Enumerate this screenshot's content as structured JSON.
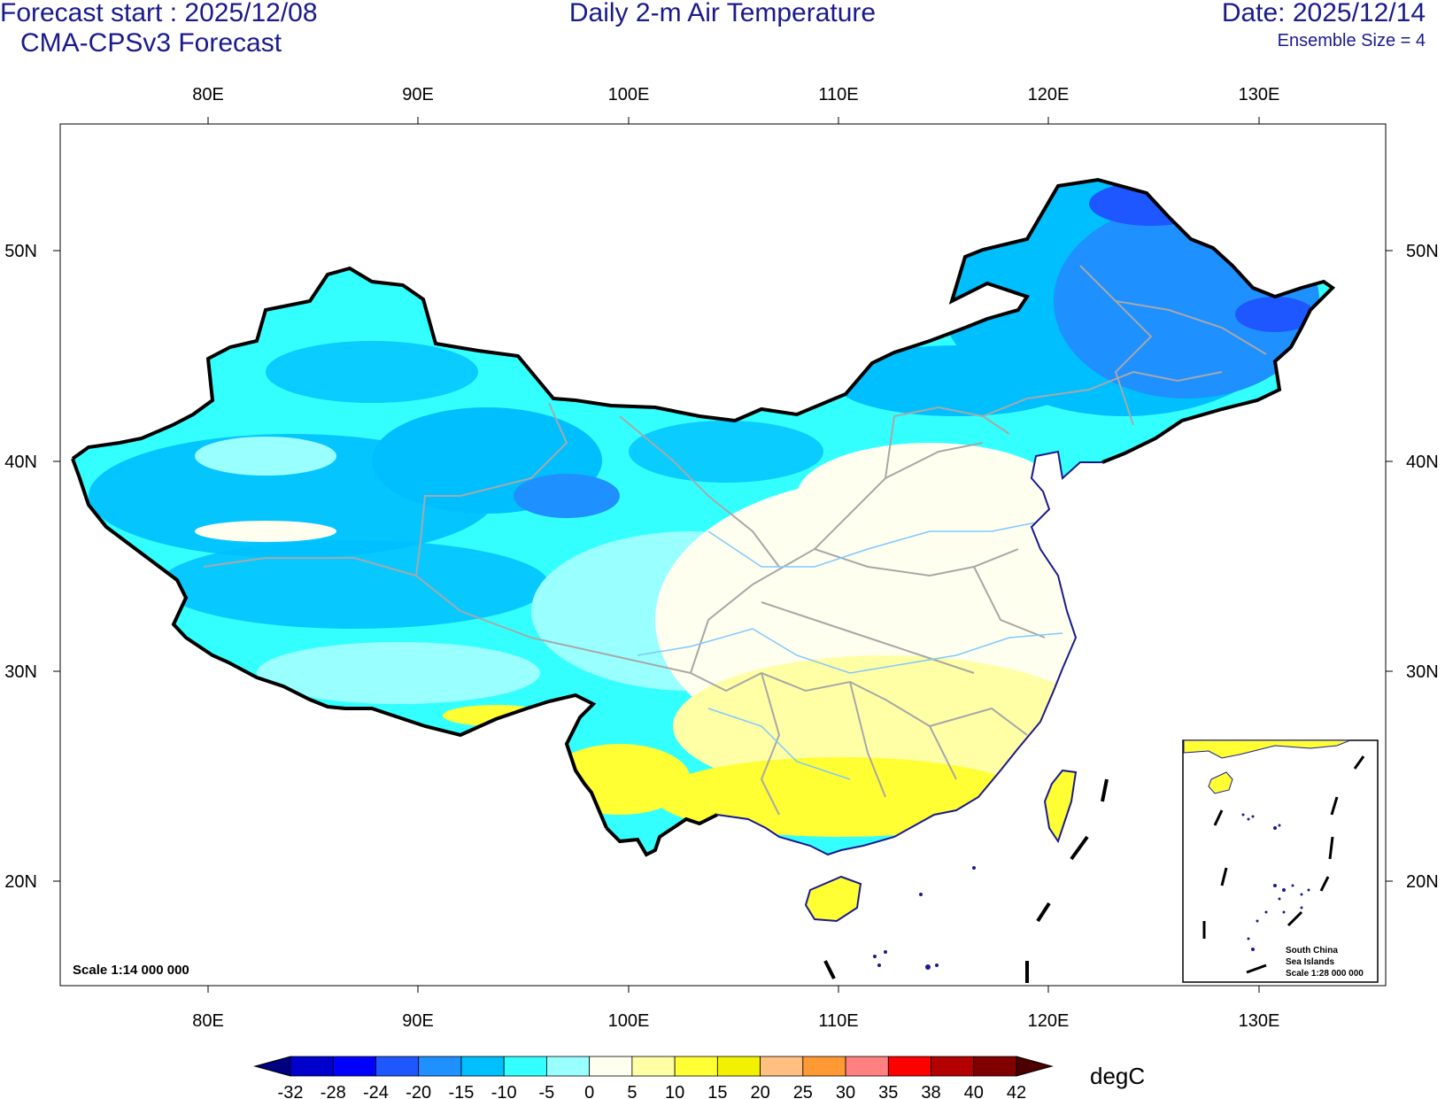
{
  "header": {
    "forecast_start": "Forecast start : 2025/12/08",
    "model": "CMA-CPSv3 Forecast",
    "title": "Daily 2-m Air Temperature",
    "date": "Date: 2025/12/14",
    "ensemble": "Ensemble Size = 4"
  },
  "axes": {
    "lon_labels": [
      "80E",
      "90E",
      "100E",
      "110E",
      "120E",
      "130E"
    ],
    "lat_labels": [
      "50N",
      "40N",
      "30N",
      "20N"
    ]
  },
  "map": {
    "scale_label": "Scale 1:14 000 000",
    "inset": {
      "line1": "South China",
      "line2": "Sea Islands",
      "line3": "Scale 1:28 000 000"
    }
  },
  "colorbar": {
    "unit": "degC",
    "levels": [
      "-32",
      "-28",
      "-24",
      "-20",
      "-15",
      "-10",
      "-5",
      "0",
      "5",
      "10",
      "15",
      "20",
      "25",
      "30",
      "35",
      "38",
      "40",
      "42"
    ],
    "colors": [
      "#000080",
      "#0000cd",
      "#0000ff",
      "#1e56ff",
      "#1e90ff",
      "#00bfff",
      "#33ffff",
      "#99ffff",
      "#fffff0",
      "#ffffa6",
      "#ffff33",
      "#f2f200",
      "#ffbf80",
      "#ff9933",
      "#ff8080",
      "#ff0000",
      "#b30000",
      "#800000",
      "#4d0000"
    ]
  }
}
